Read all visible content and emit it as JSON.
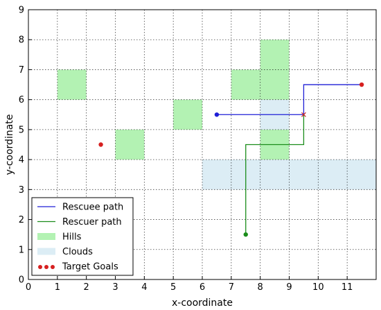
{
  "chart_data": {
    "type": "line",
    "xlabel": "x-coordinate",
    "ylabel": "y-coordinate",
    "xlim": [
      0,
      12
    ],
    "ylim": [
      0,
      9
    ],
    "x_ticks": [
      "0",
      "1",
      "2",
      "3",
      "4",
      "5",
      "6",
      "7",
      "8",
      "9",
      "10",
      "11"
    ],
    "y_ticks": [
      "0",
      "1",
      "2",
      "3",
      "4",
      "5",
      "6",
      "7",
      "8",
      "9"
    ],
    "grid": true,
    "legend_position": "bottom-left",
    "colors": {
      "rescuee": "#1f1fd6",
      "rescuer": "#1a8c1a",
      "hills": "#b3f2b3",
      "clouds": "#dcedf5",
      "goals": "#d62020",
      "crossing_marker": "#cc2222"
    },
    "legend": [
      {
        "label": "Rescuee path",
        "kind": "line",
        "color": "#1f1fd6"
      },
      {
        "label": "Rescuer path",
        "kind": "line",
        "color": "#1a8c1a"
      },
      {
        "label": "Hills",
        "kind": "patch",
        "color": "#b3f2b3"
      },
      {
        "label": "Clouds",
        "kind": "patch",
        "color": "#dcedf5"
      },
      {
        "label": "Target Goals",
        "kind": "dots",
        "color": "#d62020"
      }
    ],
    "hills": [
      {
        "x": 1,
        "y": 6,
        "w": 1,
        "h": 1
      },
      {
        "x": 3,
        "y": 4,
        "w": 1,
        "h": 1
      },
      {
        "x": 5,
        "y": 5,
        "w": 1,
        "h": 1
      },
      {
        "x": 7,
        "y": 6,
        "w": 1,
        "h": 1
      },
      {
        "x": 8,
        "y": 6,
        "w": 1,
        "h": 2
      },
      {
        "x": 8,
        "y": 4,
        "w": 1,
        "h": 1
      }
    ],
    "clouds": [
      {
        "x": 6,
        "y": 3,
        "w": 6,
        "h": 1
      },
      {
        "x": 8,
        "y": 5,
        "w": 1,
        "h": 1
      }
    ],
    "series": [
      {
        "name": "Rescuee path",
        "points": [
          [
            6.5,
            5.5
          ],
          [
            9.5,
            5.5
          ],
          [
            9.5,
            6.5
          ],
          [
            11.5,
            6.5
          ]
        ]
      },
      {
        "name": "Rescuer path",
        "points": [
          [
            7.5,
            1.5
          ],
          [
            7.5,
            4.5
          ],
          [
            9.5,
            4.5
          ],
          [
            9.5,
            5.5
          ]
        ]
      }
    ],
    "path_starts": [
      {
        "series": "Rescuee path",
        "x": 6.5,
        "y": 5.5
      },
      {
        "series": "Rescuer path",
        "x": 7.5,
        "y": 1.5
      }
    ],
    "target_goals": [
      {
        "x": 2.5,
        "y": 4.5
      },
      {
        "x": 11.5,
        "y": 6.5
      }
    ],
    "crossing_marker": {
      "x": 9.5,
      "y": 5.5
    }
  }
}
